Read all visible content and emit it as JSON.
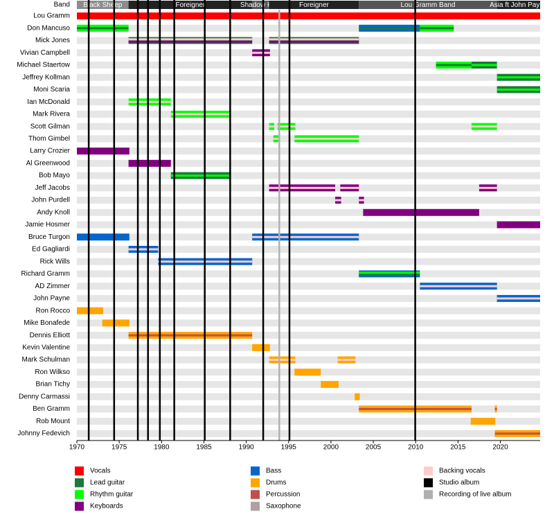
{
  "chart_data": {
    "type": "timeline",
    "band_label": "Band",
    "xlim": [
      1970,
      2024.7
    ],
    "xticks": [
      1970,
      1975,
      1980,
      1985,
      1990,
      1995,
      2000,
      2005,
      2010,
      2015,
      2020
    ],
    "eras": [
      {
        "name": "Black Sheep",
        "start": 1970,
        "end": 1976.1,
        "color": "#8c8c8c"
      },
      {
        "name": "Foreigner",
        "start": 1976.1,
        "end": 1990.7,
        "color": "#222222"
      },
      {
        "name": "Shadow King",
        "start": 1990.7,
        "end": 1992.7,
        "color": "#555555"
      },
      {
        "name": "Foreigner",
        "start": 1992.7,
        "end": 2003.3,
        "color": "#222222"
      },
      {
        "name": "Lou Gramm Band",
        "start": 2003.3,
        "end": 2019.6,
        "color": "#555555"
      },
      {
        "name": "Asia ft John Payne",
        "start": 2019.6,
        "end": 2024.7,
        "color": "#222222"
      }
    ],
    "legend": [
      {
        "name": "Vocals",
        "color": "#ff0000"
      },
      {
        "name": "Lead guitar",
        "color": "#1a7a3a"
      },
      {
        "name": "Rhythm guitar",
        "color": "#00ff00"
      },
      {
        "name": "Keyboards",
        "color": "#800080"
      },
      {
        "name": "Bass",
        "color": "#0066cc"
      },
      {
        "name": "Drums",
        "color": "#ffa500"
      },
      {
        "name": "Percussion",
        "color": "#c05050"
      },
      {
        "name": "Saxophone",
        "color": "#b0a0a0"
      },
      {
        "name": "Backing vocals",
        "color": "#ffcccc"
      },
      {
        "name": "Studio album",
        "color": "#000000"
      },
      {
        "name": "Recording of live album",
        "color": "#b0b0b0"
      }
    ],
    "studio_albums": [
      1971.4,
      1974.4,
      1977.2,
      1978.4,
      1979.8,
      1981.5,
      1985.1,
      1988.1,
      1992.0,
      1995.1,
      2009.95
    ],
    "live_albums": [
      1993.9
    ],
    "members": [
      {
        "name": "Lou Gramm",
        "spans": [
          {
            "start": 1970,
            "end": 2024.7,
            "roles": [
              "Vocals"
            ]
          }
        ]
      },
      {
        "name": "Don Mancuso",
        "spans": [
          {
            "start": 1970,
            "end": 1976.1,
            "roles": [
              "Rhythm guitar",
              "Lead guitar"
            ]
          },
          {
            "start": 2003.3,
            "end": 2010.5,
            "roles": [
              "Bass",
              "Lead guitar"
            ]
          },
          {
            "start": 2010.5,
            "end": 2014.5,
            "roles": [
              "Rhythm guitar",
              "Lead guitar"
            ]
          }
        ]
      },
      {
        "name": "Mick Jones",
        "spans": [
          {
            "start": 1976.1,
            "end": 1990.7,
            "roles": [
              "Lead guitar",
              "Backing vocals",
              "Keyboards"
            ]
          },
          {
            "start": 1992.7,
            "end": 2003.3,
            "roles": [
              "Lead guitar",
              "Backing vocals",
              "Keyboards"
            ]
          }
        ]
      },
      {
        "name": "Vivian Campbell",
        "spans": [
          {
            "start": 1990.7,
            "end": 1992.8,
            "roles": [
              "Keyboards",
              "Backing vocals"
            ]
          }
        ]
      },
      {
        "name": "Michael Staertow",
        "spans": [
          {
            "start": 2012.4,
            "end": 2016.6,
            "roles": [
              "Rhythm guitar",
              "Lead guitar"
            ]
          },
          {
            "start": 2016.6,
            "end": 2019.6,
            "roles": [
              "Lead guitar",
              "Rhythm guitar"
            ]
          }
        ]
      },
      {
        "name": "Jeffrey Kollman",
        "spans": [
          {
            "start": 2019.6,
            "end": 2024.7,
            "roles": [
              "Lead guitar",
              "Rhythm guitar"
            ]
          }
        ]
      },
      {
        "name": "Moni Scaria",
        "spans": [
          {
            "start": 2019.6,
            "end": 2024.7,
            "roles": [
              "Lead guitar",
              "Rhythm guitar"
            ]
          }
        ]
      },
      {
        "name": "Ian McDonald",
        "spans": [
          {
            "start": 1976.1,
            "end": 1981.1,
            "roles": [
              "Rhythm guitar",
              "Backing vocals"
            ]
          }
        ]
      },
      {
        "name": "Mark Rivera",
        "spans": [
          {
            "start": 1981.1,
            "end": 1988.2,
            "roles": [
              "Rhythm guitar",
              "Backing vocals"
            ]
          }
        ]
      },
      {
        "name": "Scott Gilman",
        "spans": [
          {
            "start": 1992.7,
            "end": 1993.3,
            "roles": [
              "Rhythm guitar",
              "Backing vocals"
            ]
          },
          {
            "start": 1993.7,
            "end": 1995.8,
            "roles": [
              "Rhythm guitar",
              "Backing vocals"
            ]
          },
          {
            "start": 2016.6,
            "end": 2019.6,
            "roles": [
              "Rhythm guitar",
              "Backing vocals"
            ]
          }
        ]
      },
      {
        "name": "Thom Gimbel",
        "spans": [
          {
            "start": 1993.2,
            "end": 1993.8,
            "roles": [
              "Rhythm guitar",
              "Backing vocals"
            ]
          },
          {
            "start": 1995.7,
            "end": 2003.3,
            "roles": [
              "Rhythm guitar",
              "Backing vocals"
            ]
          }
        ]
      },
      {
        "name": "Larry Crozier",
        "spans": [
          {
            "start": 1970,
            "end": 1976.2,
            "roles": [
              "Keyboards"
            ]
          }
        ]
      },
      {
        "name": "Al Greenwood",
        "spans": [
          {
            "start": 1976.1,
            "end": 1981.1,
            "roles": [
              "Keyboards"
            ]
          }
        ]
      },
      {
        "name": "Bob Mayo",
        "spans": [
          {
            "start": 1981.1,
            "end": 1988.2,
            "roles": [
              "Lead guitar",
              "Rhythm guitar"
            ]
          }
        ]
      },
      {
        "name": "Jeff Jacobs",
        "spans": [
          {
            "start": 1992.7,
            "end": 2000.5,
            "roles": [
              "Keyboards",
              "Backing vocals"
            ]
          },
          {
            "start": 2001.1,
            "end": 2003.3,
            "roles": [
              "Keyboards",
              "Backing vocals"
            ]
          },
          {
            "start": 2017.5,
            "end": 2019.6,
            "roles": [
              "Keyboards",
              "Backing vocals"
            ]
          }
        ]
      },
      {
        "name": "John Purdell",
        "spans": [
          {
            "start": 2000.5,
            "end": 2001.2,
            "roles": [
              "Keyboards",
              "Backing vocals"
            ]
          },
          {
            "start": 2003.3,
            "end": 2003.9,
            "roles": [
              "Keyboards",
              "Backing vocals"
            ]
          }
        ]
      },
      {
        "name": "Andy Knoll",
        "spans": [
          {
            "start": 2003.8,
            "end": 2017.5,
            "roles": [
              "Keyboards"
            ]
          }
        ]
      },
      {
        "name": "Jamie Hosmer",
        "spans": [
          {
            "start": 2019.6,
            "end": 2024.7,
            "roles": [
              "Keyboards"
            ]
          }
        ]
      },
      {
        "name": "Bruce Turgon",
        "spans": [
          {
            "start": 1970,
            "end": 1976.2,
            "roles": [
              "Bass"
            ]
          },
          {
            "start": 1990.7,
            "end": 2003.3,
            "roles": [
              "Bass",
              "Backing vocals"
            ]
          }
        ]
      },
      {
        "name": "Ed Gagliardi",
        "spans": [
          {
            "start": 1976.1,
            "end": 1979.6,
            "roles": [
              "Bass",
              "Backing vocals"
            ]
          }
        ]
      },
      {
        "name": "Rick Wills",
        "spans": [
          {
            "start": 1979.6,
            "end": 1990.7,
            "roles": [
              "Bass",
              "Backing vocals"
            ]
          }
        ]
      },
      {
        "name": "Richard Gramm",
        "spans": [
          {
            "start": 2003.3,
            "end": 2010.5,
            "roles": [
              "Bass",
              "Rhythm guitar",
              "Lead guitar"
            ]
          }
        ]
      },
      {
        "name": "AD Zimmer",
        "spans": [
          {
            "start": 2010.5,
            "end": 2019.6,
            "roles": [
              "Bass",
              "Backing vocals"
            ]
          }
        ]
      },
      {
        "name": "John Payne",
        "spans": [
          {
            "start": 2019.6,
            "end": 2024.7,
            "roles": [
              "Bass",
              "Backing vocals"
            ]
          }
        ]
      },
      {
        "name": "Ron Rocco",
        "spans": [
          {
            "start": 1970,
            "end": 1973.1,
            "roles": [
              "Drums"
            ]
          }
        ]
      },
      {
        "name": "Mike Bonafede",
        "spans": [
          {
            "start": 1973.0,
            "end": 1976.2,
            "roles": [
              "Drums"
            ]
          }
        ]
      },
      {
        "name": "Dennis Elliott",
        "spans": [
          {
            "start": 1976.1,
            "end": 1990.7,
            "roles": [
              "Drums",
              "Percussion"
            ]
          }
        ]
      },
      {
        "name": "Kevin Valentine",
        "spans": [
          {
            "start": 1990.7,
            "end": 1992.8,
            "roles": [
              "Drums"
            ]
          }
        ]
      },
      {
        "name": "Mark Schulman",
        "spans": [
          {
            "start": 1992.7,
            "end": 1995.8,
            "roles": [
              "Drums",
              "Backing vocals"
            ]
          },
          {
            "start": 2000.8,
            "end": 2002.9,
            "roles": [
              "Drums",
              "Backing vocals"
            ]
          }
        ]
      },
      {
        "name": "Ron Wilkso",
        "spans": [
          {
            "start": 1995.7,
            "end": 1998.8,
            "roles": [
              "Drums"
            ]
          }
        ]
      },
      {
        "name": "Brian Tichy",
        "spans": [
          {
            "start": 1998.8,
            "end": 2000.9,
            "roles": [
              "Drums"
            ]
          }
        ]
      },
      {
        "name": "Denny Carmassi",
        "spans": [
          {
            "start": 2002.8,
            "end": 2003.4,
            "roles": [
              "Drums"
            ]
          }
        ]
      },
      {
        "name": "Ben Gramm",
        "spans": [
          {
            "start": 2003.3,
            "end": 2016.6,
            "roles": [
              "Drums",
              "Percussion"
            ]
          },
          {
            "start": 2019.35,
            "end": 2019.6,
            "roles": [
              "Drums",
              "Percussion"
            ]
          }
        ]
      },
      {
        "name": "Rob Mount",
        "spans": [
          {
            "start": 2016.5,
            "end": 2019.4,
            "roles": [
              "Drums"
            ]
          }
        ]
      },
      {
        "name": "Johnny Fedevich",
        "spans": [
          {
            "start": 2019.35,
            "end": 2024.7,
            "roles": [
              "Drums",
              "Percussion"
            ]
          }
        ]
      }
    ]
  }
}
